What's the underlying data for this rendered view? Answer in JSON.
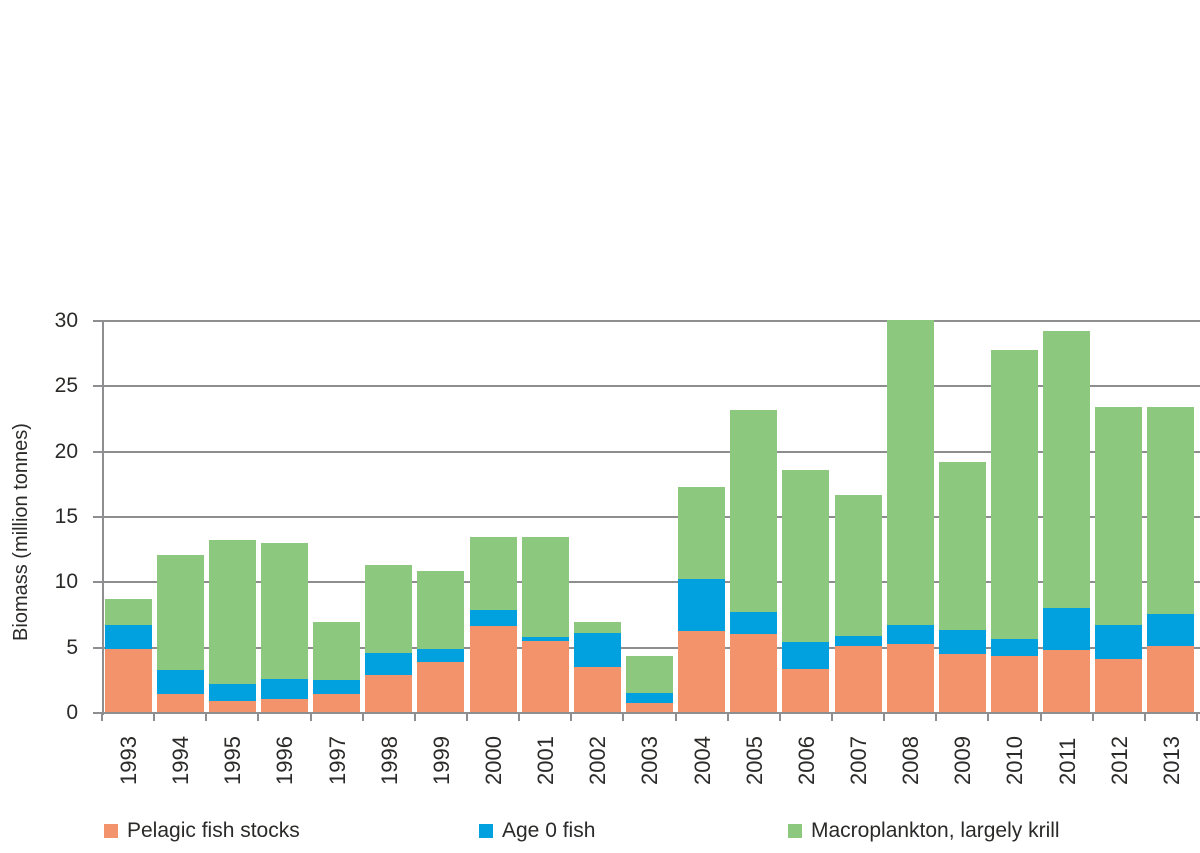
{
  "figure": {
    "background": "#ffffff"
  },
  "axes": {
    "y_title": "Biomass (million tonnes)",
    "y_tick_labels": [
      "0",
      "5",
      "10",
      "15",
      "20",
      "25",
      "30"
    ],
    "x_tick_labels": [
      "1993",
      "1994",
      "1995",
      "1996",
      "1997",
      "1998",
      "1999",
      "2000",
      "2001",
      "2002",
      "2003",
      "2004",
      "2005",
      "2006",
      "2007",
      "2008",
      "2009",
      "2010",
      "2011",
      "2012",
      "2013"
    ]
  },
  "legend": {
    "items": [
      {
        "label": "Pelagic fish stocks",
        "color": "#f2936b",
        "swatch": "orange-square"
      },
      {
        "label": "Age 0 fish",
        "color": "#00a1de",
        "swatch": "blue-square"
      },
      {
        "label": "Macroplankton, largely krill",
        "color": "#8cc87e",
        "swatch": "green-square"
      }
    ]
  },
  "colors": {
    "gridline": "#8e8e90",
    "axis": "#8e8e90",
    "text": "#2b2a29",
    "pelagic": "#f2936b",
    "age0": "#00a1de",
    "macroplankton": "#8cc87e"
  },
  "chart_data": {
    "type": "bar",
    "stacked": true,
    "title": "",
    "xlabel": "",
    "ylabel": "Biomass (million tonnes)",
    "ylim": [
      0,
      30
    ],
    "yticks": [
      0,
      5,
      10,
      15,
      20,
      25,
      30
    ],
    "grid": true,
    "legend_position": "bottom",
    "categories": [
      "1993",
      "1994",
      "1995",
      "1996",
      "1997",
      "1998",
      "1999",
      "2000",
      "2001",
      "2002",
      "2003",
      "2004",
      "2005",
      "2006",
      "2007",
      "2008",
      "2009",
      "2010",
      "2011",
      "2012",
      "2013"
    ],
    "series": [
      {
        "name": "Pelagic fish stocks",
        "slug": "pelagic-fish-stocks",
        "color": "#f2936b",
        "values": [
          4.9,
          1.45,
          0.9,
          1.1,
          1.45,
          2.9,
          3.9,
          6.65,
          5.5,
          3.5,
          0.75,
          6.3,
          6.05,
          3.4,
          5.1,
          5.3,
          4.5,
          4.4,
          4.85,
          4.1,
          5.1
        ]
      },
      {
        "name": "Age 0 fish",
        "slug": "age-0-fish",
        "color": "#00a1de",
        "values": [
          1.8,
          1.85,
          1.3,
          1.5,
          1.1,
          1.7,
          1.0,
          1.25,
          0.35,
          2.6,
          0.8,
          3.95,
          1.7,
          2.05,
          0.8,
          1.45,
          1.85,
          1.3,
          3.2,
          2.65,
          2.5
        ]
      },
      {
        "name": "Macroplankton, largely krill",
        "slug": "macroplankton-largely-krill",
        "color": "#8cc87e",
        "values": [
          2.0,
          8.8,
          11.05,
          10.45,
          4.4,
          6.7,
          6.0,
          5.6,
          7.6,
          0.9,
          2.85,
          7.05,
          15.45,
          13.15,
          10.75,
          23.35,
          12.85,
          22.1,
          21.2,
          16.65,
          15.8
        ]
      }
    ],
    "stacked_totals": [
      8.7,
      12.1,
      13.25,
      13.05,
      6.95,
      11.3,
      10.9,
      13.5,
      13.45,
      7.0,
      4.4,
      17.3,
      23.2,
      18.6,
      16.65,
      30.1,
      19.2,
      27.8,
      29.25,
      23.4,
      23.4
    ]
  }
}
